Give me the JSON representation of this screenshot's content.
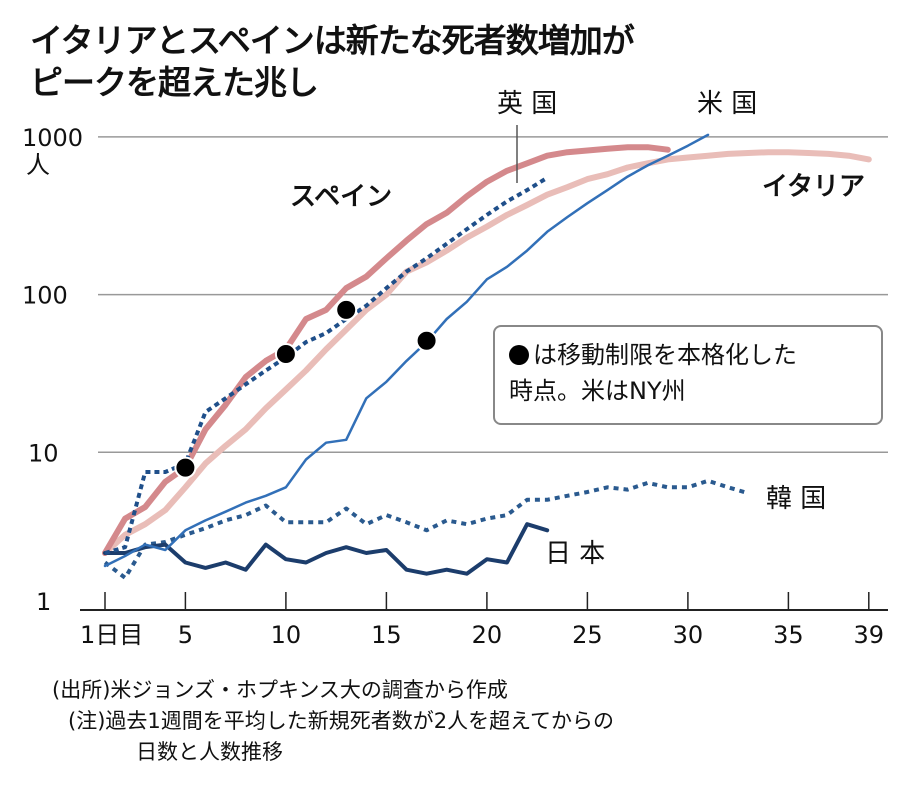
{
  "title_lines": [
    "イタリアとスペインは新たな死者数増加が",
    "ピークを超えた兆し"
  ],
  "notes": [
    "(出所)米ジョンズ・ホプキンス大の調査から作成",
    "(注)過去1週間を平均した新規死者数が2人を超えてからの",
    "日数と人数推移"
  ],
  "legend": {
    "line1": "は移動制限を本格化した",
    "line2": "時点。米はNY州"
  },
  "colors": {
    "spain": "#d4898c",
    "italy": "#e9bdb8",
    "uk": "#1f4f8a",
    "us": "#3270b8",
    "korea": "#2a5a8f",
    "japan": "#1c3d6c"
  },
  "chart_data": {
    "type": "line",
    "title": "イタリアとスペインは新たな死者数増加がピークを超えた兆し",
    "ylabel": "人",
    "yscale": "log",
    "ylim": [
      1,
      1000
    ],
    "yticks": [
      {
        "v": 1,
        "label": "1"
      },
      {
        "v": 10,
        "label": "10"
      },
      {
        "v": 100,
        "label": "100"
      },
      {
        "v": 1000,
        "label": "1000"
      }
    ],
    "xlim": [
      1,
      39
    ],
    "xticks": [
      {
        "v": 1,
        "label": "1日目"
      },
      {
        "v": 5,
        "label": "5"
      },
      {
        "v": 10,
        "label": "10"
      },
      {
        "v": 15,
        "label": "15"
      },
      {
        "v": 20,
        "label": "20"
      },
      {
        "v": 25,
        "label": "25"
      },
      {
        "v": 30,
        "label": "30"
      },
      {
        "v": 35,
        "label": "35"
      },
      {
        "v": 39,
        "label": "39"
      }
    ],
    "series": [
      {
        "key": "italy",
        "name": "イタリア",
        "values": [
          2.3,
          3,
          3.5,
          4.3,
          6,
          8.5,
          11,
          14,
          19,
          25,
          33,
          45,
          60,
          80,
          100,
          140,
          160,
          190,
          230,
          270,
          320,
          370,
          430,
          480,
          540,
          580,
          640,
          680,
          720,
          740,
          760,
          780,
          790,
          800,
          800,
          790,
          780,
          760,
          720
        ]
      },
      {
        "key": "spain",
        "name": "スペイン",
        "values": [
          2.3,
          3.8,
          4.5,
          6.5,
          8,
          14,
          20,
          30,
          38,
          45,
          70,
          80,
          110,
          130,
          170,
          220,
          280,
          330,
          420,
          520,
          610,
          680,
          760,
          800,
          820,
          840,
          860,
          860,
          830
        ]
      },
      {
        "key": "uk",
        "name": "英 国",
        "dashed": true,
        "values": [
          2.3,
          2.5,
          7.5,
          7.5,
          8.5,
          18,
          22,
          27,
          33,
          40,
          50,
          57,
          70,
          85,
          110,
          140,
          170,
          210,
          260,
          320,
          390,
          460,
          550
        ]
      },
      {
        "key": "us",
        "name": "米 国",
        "values": [
          1.9,
          2.2,
          2.6,
          2.4,
          3.2,
          3.7,
          4.2,
          4.8,
          5.3,
          6,
          9,
          11.5,
          12,
          22,
          28,
          38,
          50,
          70,
          90,
          125,
          150,
          190,
          250,
          310,
          380,
          460,
          560,
          660,
          760,
          880,
          1030
        ]
      },
      {
        "key": "korea",
        "name": "韓 国",
        "dashed": true,
        "values": [
          2.0,
          1.6,
          2.6,
          2.7,
          3.0,
          3.3,
          3.7,
          4.0,
          4.6,
          3.6,
          3.6,
          3.6,
          4.4,
          3.5,
          4.0,
          3.6,
          3.2,
          3.7,
          3.5,
          3.8,
          4.0,
          5.0,
          5.0,
          5.3,
          5.6,
          6.0,
          5.8,
          6.4,
          6.0,
          6.0,
          6.6,
          6.0,
          5.5
        ]
      },
      {
        "key": "japan",
        "name": "日 本",
        "values": [
          2.3,
          2.3,
          2.5,
          2.6,
          2.0,
          1.85,
          2.0,
          1.8,
          2.6,
          2.1,
          2.0,
          2.3,
          2.5,
          2.3,
          2.4,
          1.8,
          1.7,
          1.8,
          1.7,
          2.1,
          2.0,
          3.5,
          3.2
        ]
      }
    ],
    "lockdown_points": [
      {
        "day": 5,
        "value": 8
      },
      {
        "day": 10,
        "value": 42
      },
      {
        "day": 13,
        "value": 80
      },
      {
        "day": 17,
        "value": 51
      }
    ]
  }
}
